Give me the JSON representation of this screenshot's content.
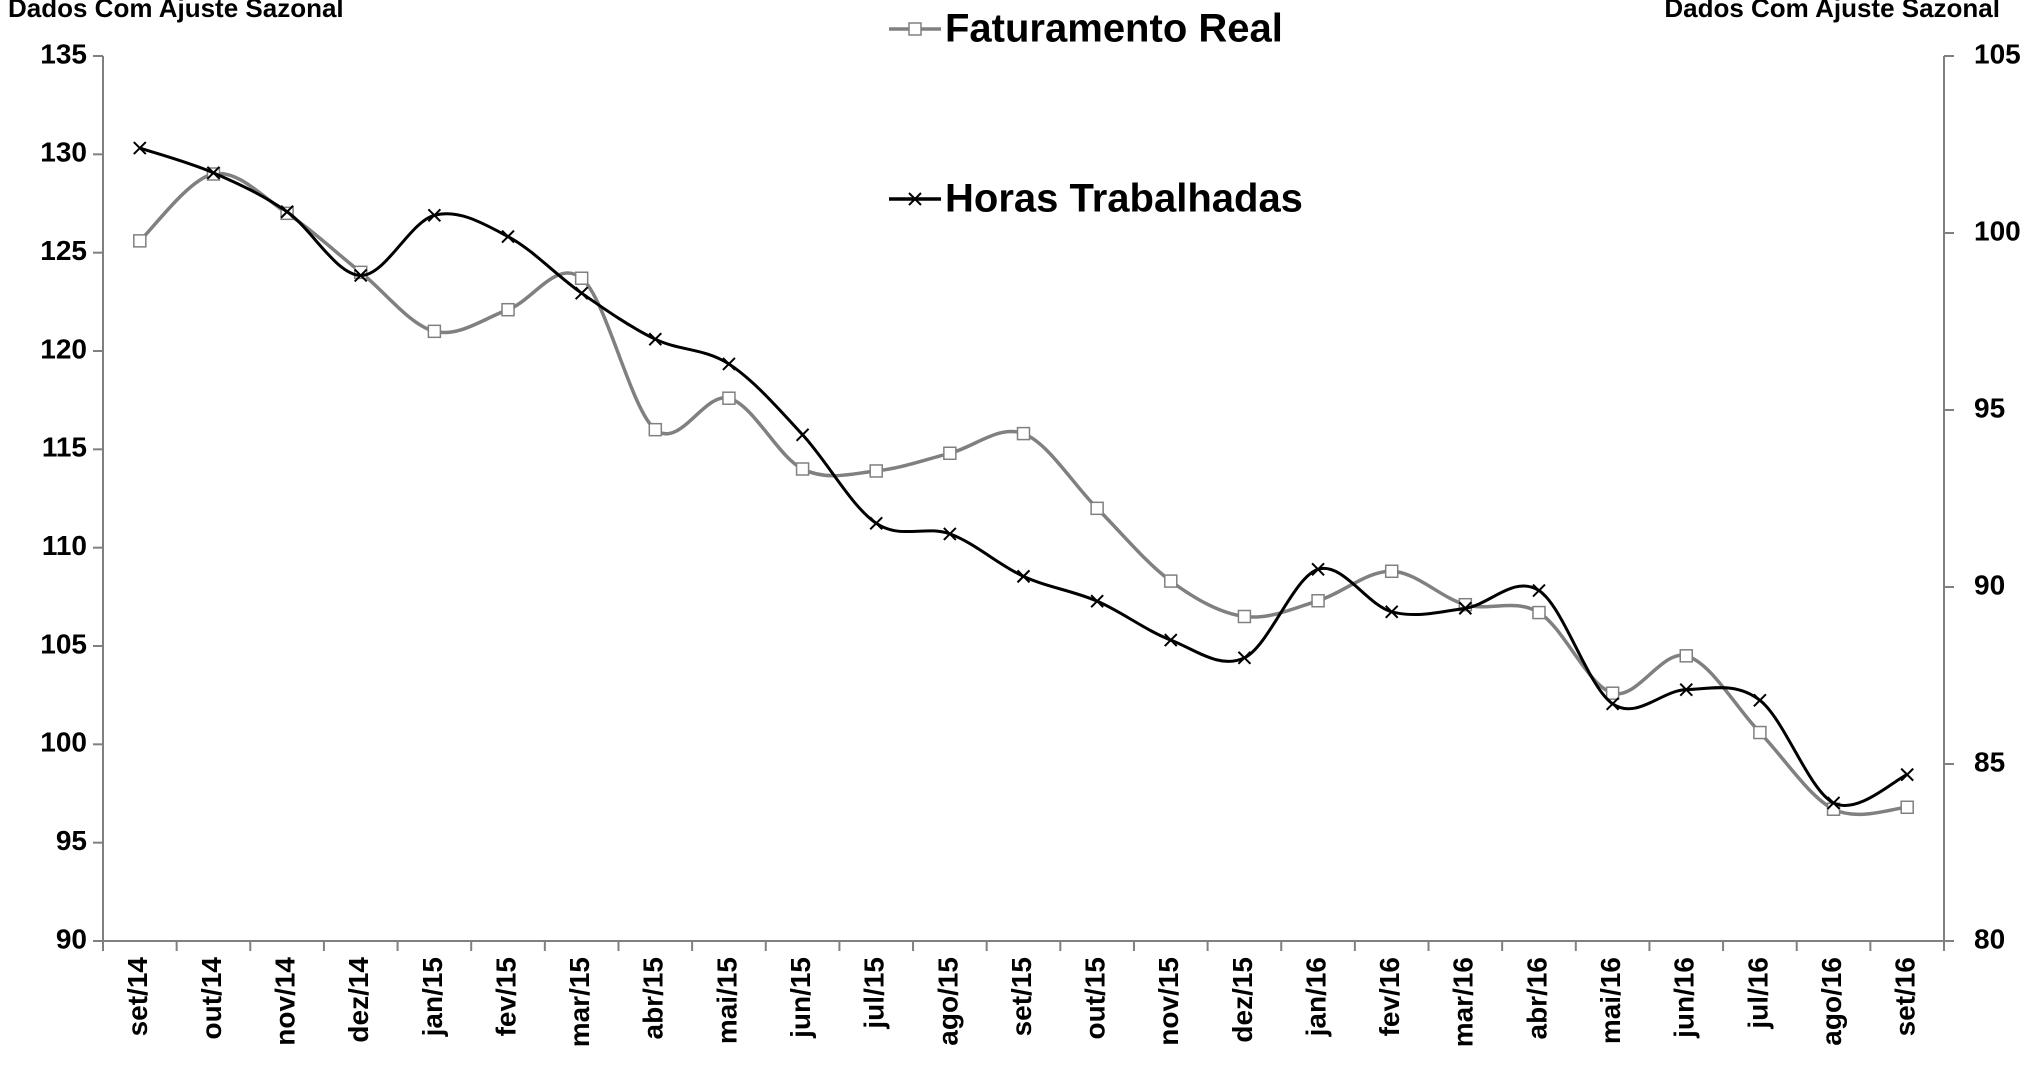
{
  "chart_data": {
    "type": "line",
    "y_label": "Dados Com Ajuste Sazonal",
    "y2_label": "Dados Com Ajuste Sazonal",
    "categories": [
      "set/14",
      "out/14",
      "nov/14",
      "dez/14",
      "jan/15",
      "fev/15",
      "mar/15",
      "abr/15",
      "mai/15",
      "jun/15",
      "jul/15",
      "ago/15",
      "set/15",
      "out/15",
      "nov/15",
      "dez/15",
      "jan/16",
      "fev/16",
      "mar/16",
      "abr/16",
      "mai/16",
      "jun/16",
      "jul/16",
      "ago/16",
      "set/16"
    ],
    "series": [
      {
        "name": "Faturamento Real",
        "color": "#808080",
        "marker": "square",
        "axis": "y",
        "values": [
          125.6,
          129.0,
          127.0,
          124.0,
          121.0,
          122.1,
          123.7,
          116.0,
          117.6,
          114.0,
          113.9,
          114.8,
          115.8,
          112.0,
          108.3,
          106.5,
          107.3,
          108.8,
          107.1,
          106.7,
          102.6,
          104.5,
          100.6,
          96.7,
          96.8
        ]
      },
      {
        "name": "Horas Trabalhadas",
        "color": "#000000",
        "marker": "x",
        "axis": "y2",
        "values": [
          102.4,
          101.7,
          100.6,
          98.8,
          100.5,
          99.9,
          98.3,
          97.0,
          96.3,
          94.3,
          91.8,
          91.5,
          90.3,
          89.6,
          88.5,
          88.0,
          90.5,
          89.3,
          89.4,
          89.9,
          86.7,
          87.1,
          86.8,
          83.9,
          84.7
        ]
      }
    ],
    "ylim": [
      90,
      135
    ],
    "yticks": [
      90,
      95,
      100,
      105,
      110,
      115,
      120,
      125,
      130,
      135
    ],
    "y2lim": [
      80,
      105
    ],
    "y2ticks": [
      80,
      85,
      90,
      95,
      100,
      105
    ],
    "grid": false
  }
}
